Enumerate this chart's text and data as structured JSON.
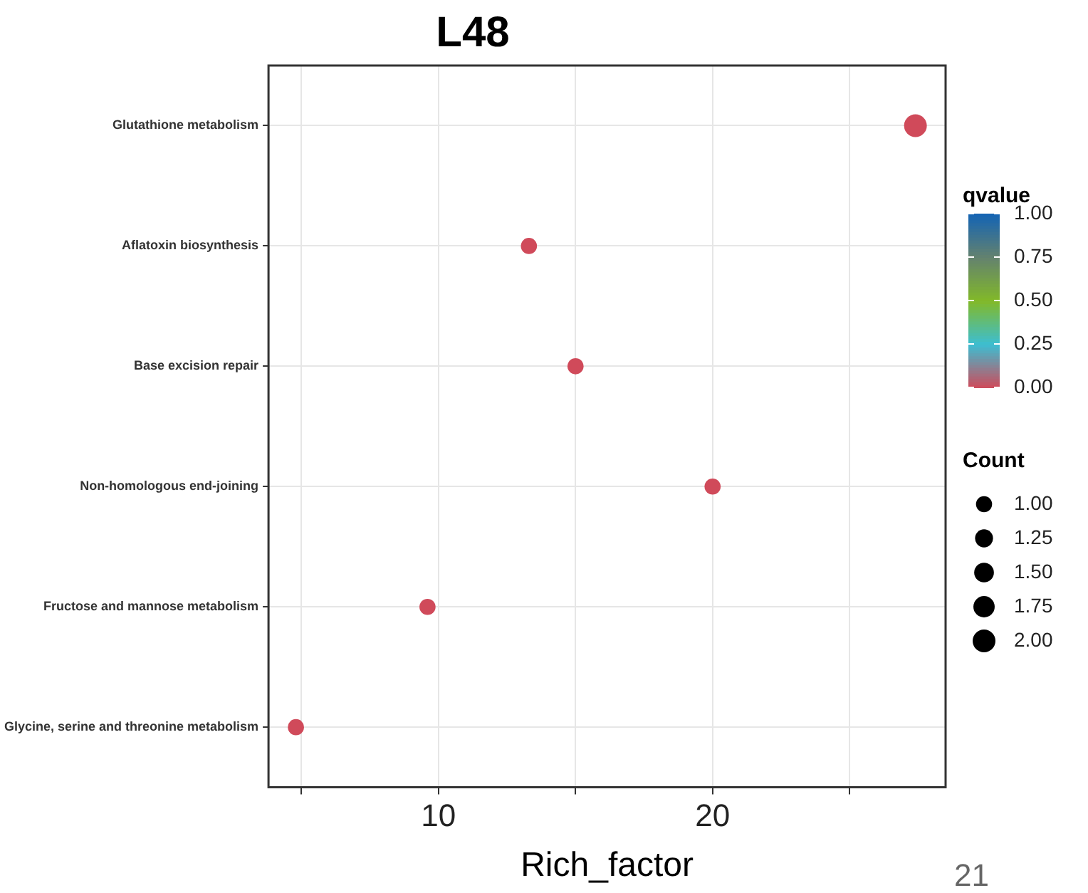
{
  "chart_data": {
    "type": "bubble",
    "title": "L48",
    "xlabel": "Rich_factor",
    "categories": [
      "Glutathione metabolism",
      "Aflatoxin biosynthesis",
      "Base excision repair",
      "Non-homologous end-joining",
      "Fructose and mannose metabolism",
      "Glycine, serine and threonine metabolism"
    ],
    "orientation": "horizontal",
    "series": [
      {
        "values": [
          27.4,
          13.3,
          15,
          20,
          9.6,
          4.8
        ],
        "sizes": [
          2,
          1,
          1,
          1,
          1,
          1
        ],
        "cvalues": [
          0,
          0,
          0,
          0,
          0,
          0
        ]
      }
    ],
    "xlim": [
      3.8,
      28.5
    ],
    "xticks": [
      {
        "value": 5,
        "label": null
      },
      10,
      {
        "value": 15,
        "label": null
      },
      20,
      {
        "value": 25,
        "label": null
      }
    ],
    "grid": true,
    "clabel": "qvalue",
    "clim": [
      0,
      1
    ],
    "cticks": [
      {
        "value": 0,
        "label": "0.00"
      },
      {
        "value": 0.25,
        "label": "0.25"
      },
      {
        "value": 0.5,
        "label": "0.50"
      },
      {
        "value": 0.75,
        "label": "0.75"
      },
      {
        "value": 1,
        "label": "1.00"
      }
    ],
    "legend_title": "Count",
    "size_legend": [
      {
        "value": 1,
        "label": "1.00"
      },
      {
        "value": 1.25,
        "label": "1.25"
      },
      {
        "value": 1.5,
        "label": "1.50"
      },
      {
        "value": 1.75,
        "label": "1.75"
      },
      {
        "value": 2,
        "label": "2.00"
      }
    ],
    "annotations": [
      "21"
    ]
  }
}
